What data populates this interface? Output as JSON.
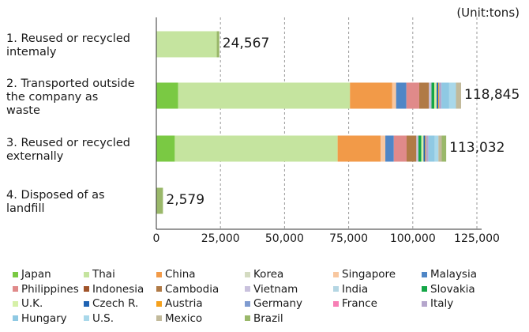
{
  "unit_label": "(Unit:tons)",
  "chart_data": {
    "type": "bar",
    "orientation": "horizontal",
    "stacked": true,
    "categories": [
      "1.  Reused or recycled intemaly",
      "2. Transported outside the company as waste",
      "3. Reused or recycled externally",
      "4. Disposed of as landfill"
    ],
    "category_lines": [
      [
        "1.  Reused or recycled",
        "intemaly"
      ],
      [
        "2. Transported outside",
        "the company as",
        "waste"
      ],
      [
        "3. Reused or recycled",
        "externally"
      ],
      [
        "4. Disposed of as",
        "landfill"
      ]
    ],
    "totals": [
      "24,567",
      "118,845",
      "113,032",
      "2,579"
    ],
    "xlim": [
      0,
      125000
    ],
    "xticks": [
      0,
      25000,
      50000,
      75000,
      100000,
      125000
    ],
    "xtick_labels": [
      "0",
      "25,000",
      "50,000",
      "75,000",
      "100,000",
      "125,000"
    ],
    "grid": "vertical dashed",
    "legend_position": "bottom",
    "series": [
      {
        "name": "Japan",
        "color": "#7ac943",
        "values": [
          0,
          8500,
          7200,
          0
        ]
      },
      {
        "name": "Thai",
        "color": "#c5e49f",
        "values": [
          23567,
          67000,
          63500,
          0
        ]
      },
      {
        "name": "China",
        "color": "#f29a48",
        "values": [
          0,
          16500,
          16800,
          0
        ]
      },
      {
        "name": "Korea",
        "color": "#d4dbc1",
        "values": [
          0,
          0,
          0,
          0
        ]
      },
      {
        "name": "Singapore",
        "color": "#f8c79f",
        "values": [
          0,
          1500,
          1800,
          0
        ]
      },
      {
        "name": "Malaysia",
        "color": "#4f86c6",
        "values": [
          0,
          4000,
          3300,
          0
        ]
      },
      {
        "name": "Philippines",
        "color": "#e08a8a",
        "values": [
          0,
          5000,
          5000,
          0
        ]
      },
      {
        "name": "Indonesia",
        "color": "#a0542a",
        "values": [
          0,
          0,
          0,
          0
        ]
      },
      {
        "name": "Cambodia",
        "color": "#b07a46",
        "values": [
          0,
          3800,
          3800,
          0
        ]
      },
      {
        "name": "Vietnam",
        "color": "#c9c1dd",
        "values": [
          0,
          1000,
          800,
          0
        ]
      },
      {
        "name": "India",
        "color": "#b4d6e3",
        "values": [
          0,
          0,
          0,
          0
        ]
      },
      {
        "name": "Slovakia",
        "color": "#14a647",
        "values": [
          0,
          1100,
          1100,
          0
        ]
      },
      {
        "name": "U.K.",
        "color": "#d6f0a8",
        "values": [
          0,
          900,
          900,
          0
        ]
      },
      {
        "name": "Czech R.",
        "color": "#1f63b3",
        "values": [
          0,
          600,
          600,
          0
        ]
      },
      {
        "name": "Austria",
        "color": "#f5a11c",
        "values": [
          0,
          300,
          300,
          0
        ]
      },
      {
        "name": "Germany",
        "color": "#7f9bd0",
        "values": [
          0,
          0,
          0,
          0
        ]
      },
      {
        "name": "France",
        "color": "#f77fb5",
        "values": [
          0,
          0,
          0,
          0
        ]
      },
      {
        "name": "Italy",
        "color": "#b5a6cc",
        "values": [
          0,
          1000,
          1000,
          0
        ]
      },
      {
        "name": "Hungary",
        "color": "#8fc9e3",
        "values": [
          0,
          3000,
          2500,
          0
        ]
      },
      {
        "name": "U.S.",
        "color": "#a9d8ea",
        "values": [
          0,
          2645,
          1400,
          0
        ]
      },
      {
        "name": "Mexico",
        "color": "#c2ba9b",
        "values": [
          0,
          2000,
          1300,
          0
        ]
      },
      {
        "name": "Brazil",
        "color": "#9ab86a",
        "values": [
          1000,
          0,
          1732,
          2579
        ]
      }
    ]
  }
}
